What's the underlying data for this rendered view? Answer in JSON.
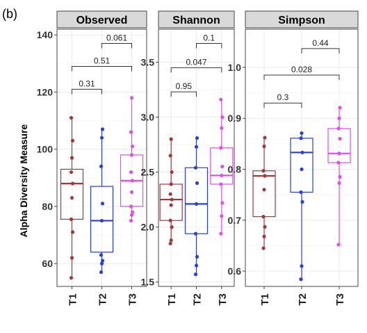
{
  "figure": {
    "panel_label": "(b)",
    "ylabel": "Alpha Diversity Measure",
    "categories": [
      "T1",
      "T2",
      "T3"
    ],
    "colors": {
      "T1": "#a0383a",
      "T2": "#2b3fd6",
      "T3": "#df4fe6"
    },
    "strip_color": "#d9d9d9",
    "grid_color": "#ebebeb",
    "axis_color": "#444444"
  },
  "chart_data": [
    {
      "type": "box",
      "title": "Observed",
      "categories": [
        "T1",
        "T2",
        "T3"
      ],
      "ylim": [
        52,
        142
      ],
      "yticks": [
        60,
        80,
        100,
        120,
        140
      ],
      "ytick_labels": [
        "60",
        "80",
        "100",
        "120",
        "140"
      ],
      "series": [
        {
          "name": "T1",
          "q1": 75.5,
          "median": 88,
          "q3": 93,
          "whisker_low": 55,
          "whisker_high": 111,
          "points": [
            55,
            62,
            71,
            75.5,
            83,
            88,
            92,
            97,
            103,
            111
          ]
        },
        {
          "name": "T2",
          "q1": 64,
          "median": 75,
          "q3": 87,
          "whisker_low": 57,
          "whisker_high": 107,
          "points": [
            57,
            60,
            61,
            63,
            75,
            81,
            94,
            104,
            107
          ]
        },
        {
          "name": "T3",
          "q1": 80,
          "median": 89,
          "q3": 98,
          "whisker_low": 75,
          "whisker_high": 118,
          "points": [
            75,
            77,
            78,
            80,
            85,
            89,
            92,
            98,
            101,
            106,
            118
          ]
        }
      ],
      "comparisons": [
        {
          "from": "T1",
          "to": "T2",
          "label": "0.31",
          "y": 121
        },
        {
          "from": "T1",
          "to": "T3",
          "label": "0.51",
          "y": 129
        },
        {
          "from": "T2",
          "to": "T3",
          "label": "0.061",
          "y": 137
        }
      ]
    },
    {
      "type": "box",
      "title": "Shannon",
      "categories": [
        "T1",
        "T2",
        "T3"
      ],
      "ylim": [
        1.46,
        3.8
      ],
      "yticks": [
        1.5,
        2.0,
        2.5,
        3.0,
        3.5
      ],
      "ytick_labels": [
        "1.5",
        "2.0",
        "2.5",
        "3.0",
        "3.5"
      ],
      "series": [
        {
          "name": "T1",
          "q1": 2.06,
          "median": 2.25,
          "q3": 2.39,
          "whisker_low": 1.85,
          "whisker_high": 2.8,
          "points": [
            1.85,
            1.88,
            2.0,
            2.06,
            2.2,
            2.25,
            2.3,
            2.39,
            2.5,
            2.65,
            2.8
          ]
        },
        {
          "name": "T2",
          "q1": 1.94,
          "median": 2.21,
          "q3": 2.54,
          "whisker_low": 1.57,
          "whisker_high": 2.81,
          "points": [
            1.57,
            1.65,
            1.73,
            1.94,
            2.21,
            2.4,
            2.54,
            2.73,
            2.81
          ]
        },
        {
          "name": "T3",
          "q1": 2.39,
          "median": 2.47,
          "q3": 2.72,
          "whisker_low": 1.94,
          "whisker_high": 3.16,
          "points": [
            1.94,
            2.1,
            2.22,
            2.39,
            2.47,
            2.55,
            2.72,
            2.9,
            3.0,
            3.16
          ]
        }
      ],
      "comparisons": [
        {
          "from": "T1",
          "to": "T2",
          "label": "0.95",
          "y": 3.23
        },
        {
          "from": "T1",
          "to": "T3",
          "label": "0.047",
          "y": 3.45
        },
        {
          "from": "T2",
          "to": "T3",
          "label": "0.1",
          "y": 3.67
        }
      ]
    },
    {
      "type": "box",
      "title": "Simpson",
      "categories": [
        "T1",
        "T2",
        "T3"
      ],
      "ylim": [
        0.57,
        1.075
      ],
      "yticks": [
        0.6,
        0.7,
        0.8,
        0.9,
        1.0
      ],
      "ytick_labels": [
        "0.6",
        "0.7",
        "0.8",
        "0.9",
        "1.0"
      ],
      "series": [
        {
          "name": "T1",
          "q1": 0.707,
          "median": 0.787,
          "q3": 0.797,
          "whisker_low": 0.645,
          "whisker_high": 0.862,
          "points": [
            0.645,
            0.668,
            0.687,
            0.707,
            0.76,
            0.787,
            0.797,
            0.845,
            0.862
          ]
        },
        {
          "name": "T2",
          "q1": 0.755,
          "median": 0.833,
          "q3": 0.861,
          "whisker_low": 0.584,
          "whisker_high": 0.871,
          "points": [
            0.584,
            0.61,
            0.736,
            0.755,
            0.8,
            0.833,
            0.861,
            0.871
          ]
        },
        {
          "name": "T3",
          "q1": 0.813,
          "median": 0.831,
          "q3": 0.88,
          "whisker_low": 0.652,
          "whisker_high": 0.921,
          "points": [
            0.652,
            0.773,
            0.785,
            0.813,
            0.831,
            0.86,
            0.88,
            0.9,
            0.921
          ]
        }
      ],
      "comparisons": [
        {
          "from": "T1",
          "to": "T2",
          "label": "0.3",
          "y": 0.93
        },
        {
          "from": "T1",
          "to": "T3",
          "label": "0.028",
          "y": 0.985
        },
        {
          "from": "T2",
          "to": "T3",
          "label": "0.44",
          "y": 1.037
        }
      ]
    }
  ]
}
